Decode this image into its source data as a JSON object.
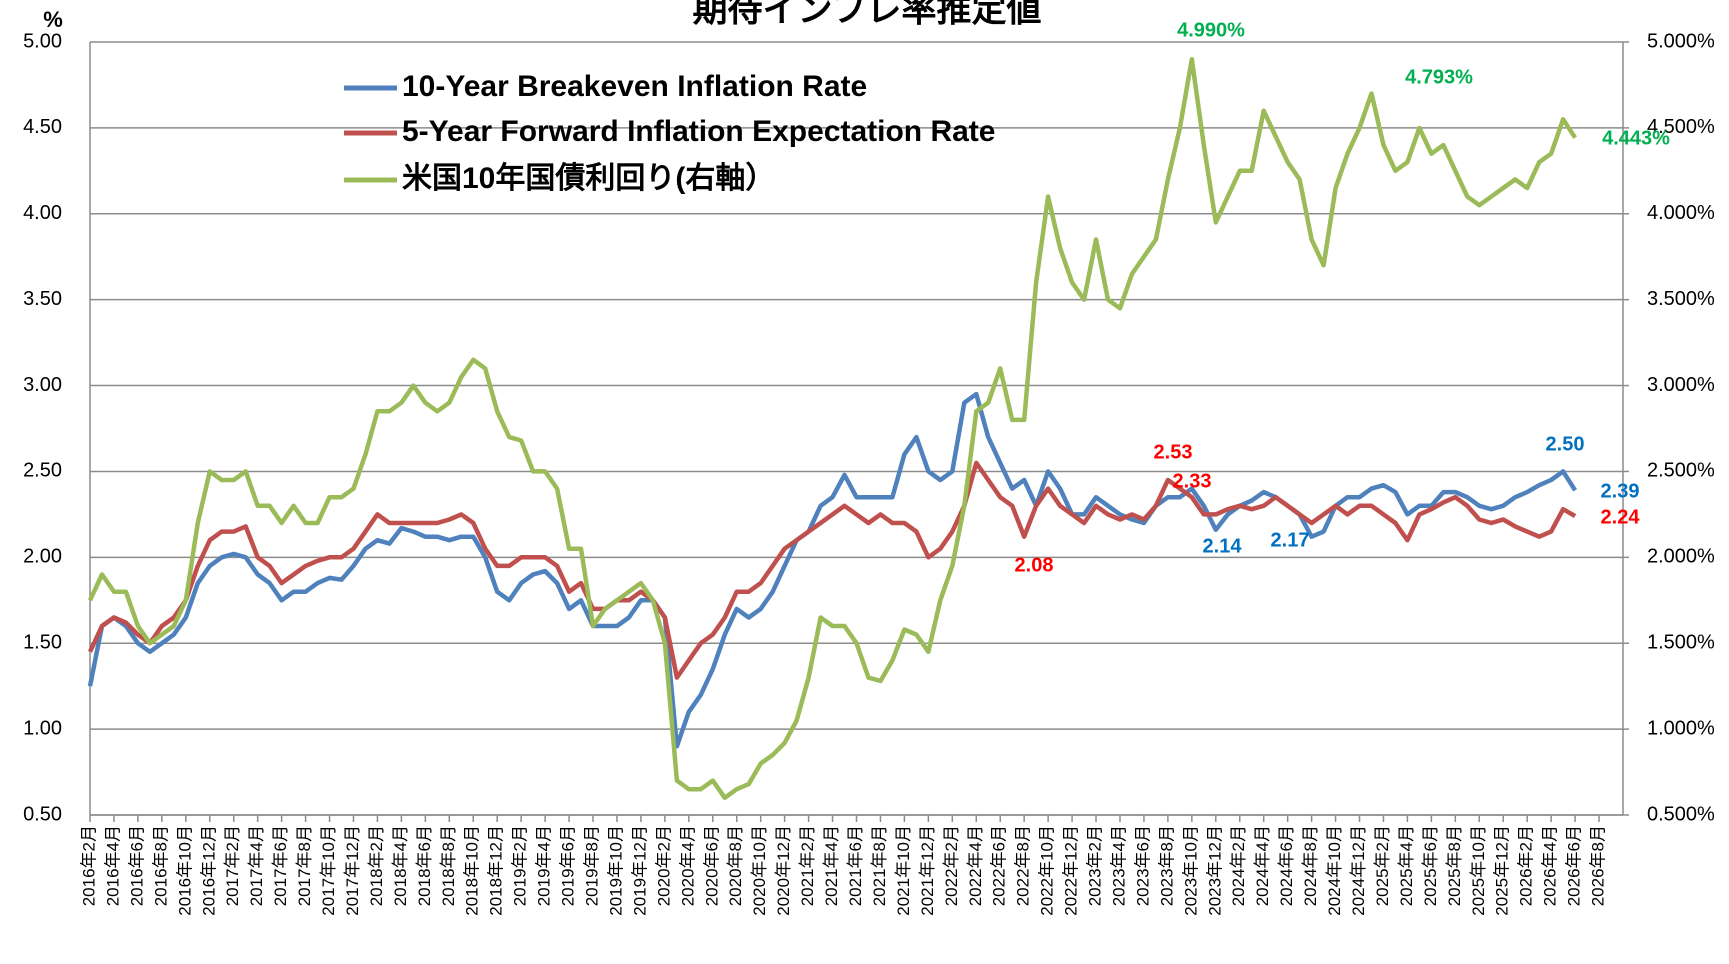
{
  "chart_data": {
    "type": "line",
    "title": "期待インフレ率推定値",
    "y_label": "%",
    "categories": [
      "2016年2月",
      null,
      "2016年4月",
      null,
      "2016年6月",
      null,
      "2016年8月",
      null,
      "2016年10月",
      null,
      "2016年12月",
      null,
      "2017年2月",
      null,
      "2017年4月",
      null,
      "2017年6月",
      null,
      "2017年8月",
      null,
      "2017年10月",
      null,
      "2017年12月",
      null,
      "2018年2月",
      null,
      "2018年4月",
      null,
      "2018年6月",
      null,
      "2018年8月",
      null,
      "2018年10月",
      null,
      "2018年12月",
      null,
      "2019年2月",
      null,
      "2019年4月",
      null,
      "2019年6月",
      null,
      "2019年8月",
      null,
      "2019年10月",
      null,
      "2019年12月",
      null,
      "2020年2月",
      null,
      "2020年4月",
      null,
      "2020年6月",
      null,
      "2020年8月",
      null,
      "2020年10月",
      null,
      "2020年12月",
      null,
      "2021年2月",
      null,
      "2021年4月",
      null,
      "2021年6月",
      null,
      "2021年8月",
      null,
      "2021年10月",
      null,
      "2021年12月",
      null,
      "2022年2月",
      null,
      "2022年4月",
      null,
      "2022年6月",
      null,
      "2022年8月",
      null,
      "2022年10月",
      null,
      "2022年12月",
      null,
      "2023年2月",
      null,
      "2023年4月",
      null,
      "2023年6月",
      null,
      "2023年8月",
      null,
      "2023年10月",
      null,
      "2023年12月",
      null,
      "2024年2月",
      null,
      "2024年4月",
      null,
      "2024年6月",
      null,
      "2024年8月",
      null,
      "2024年10月",
      null,
      "2024年12月",
      null,
      "2025年2月",
      null,
      "2025年4月",
      null,
      "2025年6月",
      null,
      "2025年8月",
      null,
      "2025年10月",
      null,
      "2025年12月",
      null,
      "2026年2月",
      null,
      "2026年4月",
      null,
      "2026年6月",
      null,
      "2026年8月",
      null,
      null
    ],
    "series": [
      {
        "name": "10-Year Breakeven Inflation Rate",
        "color": "#4f81bd",
        "values": [
          1.25,
          1.6,
          1.65,
          1.6,
          1.5,
          1.45,
          1.5,
          1.55,
          1.65,
          1.85,
          1.95,
          2.0,
          2.02,
          2.0,
          1.9,
          1.85,
          1.75,
          1.8,
          1.8,
          1.85,
          1.88,
          1.87,
          1.95,
          2.05,
          2.1,
          2.08,
          2.17,
          2.15,
          2.12,
          2.12,
          2.1,
          2.12,
          2.12,
          2.0,
          1.8,
          1.75,
          1.85,
          1.9,
          1.92,
          1.85,
          1.7,
          1.75,
          1.6,
          1.6,
          1.6,
          1.65,
          1.75,
          1.75,
          1.65,
          0.9,
          1.1,
          1.2,
          1.35,
          1.55,
          1.7,
          1.65,
          1.7,
          1.8,
          1.95,
          2.1,
          2.15,
          2.3,
          2.35,
          2.48,
          2.35,
          2.35,
          2.35,
          2.35,
          2.6,
          2.7,
          2.5,
          2.45,
          2.5,
          2.9,
          2.95,
          2.7,
          2.55,
          2.4,
          2.45,
          2.3,
          2.5,
          2.4,
          2.25,
          2.25,
          2.35,
          2.3,
          2.25,
          2.22,
          2.2,
          2.3,
          2.35,
          2.35,
          2.4,
          2.3,
          2.16,
          2.25,
          2.3,
          2.33,
          2.38,
          2.35,
          2.3,
          2.25,
          2.12,
          2.15,
          2.3,
          2.35,
          2.35,
          2.4,
          2.42,
          2.38,
          2.25,
          2.3,
          2.3,
          2.38,
          2.38,
          2.35,
          2.3,
          2.28,
          2.3,
          2.35,
          2.38,
          2.42,
          2.45,
          2.5,
          2.39,
          null,
          null,
          null,
          null
        ]
      },
      {
        "name": "5-Year Forward Inflation Expectation Rate",
        "color": "#c0504d",
        "values": [
          1.45,
          1.6,
          1.65,
          1.62,
          1.55,
          1.5,
          1.6,
          1.65,
          1.75,
          1.95,
          2.1,
          2.15,
          2.15,
          2.18,
          2.0,
          1.95,
          1.85,
          1.9,
          1.95,
          1.98,
          2.0,
          2.0,
          2.05,
          2.15,
          2.25,
          2.2,
          2.2,
          2.2,
          2.2,
          2.2,
          2.22,
          2.25,
          2.2,
          2.05,
          1.95,
          1.95,
          2.0,
          2.0,
          2.0,
          1.95,
          1.8,
          1.85,
          1.7,
          1.7,
          1.75,
          1.75,
          1.8,
          1.75,
          1.65,
          1.3,
          1.4,
          1.5,
          1.55,
          1.65,
          1.8,
          1.8,
          1.85,
          1.95,
          2.05,
          2.1,
          2.15,
          2.2,
          2.25,
          2.3,
          2.25,
          2.2,
          2.25,
          2.2,
          2.2,
          2.15,
          2.0,
          2.05,
          2.15,
          2.3,
          2.55,
          2.45,
          2.35,
          2.3,
          2.12,
          2.3,
          2.4,
          2.3,
          2.25,
          2.2,
          2.3,
          2.25,
          2.22,
          2.25,
          2.22,
          2.3,
          2.45,
          2.4,
          2.35,
          2.25,
          2.25,
          2.28,
          2.3,
          2.28,
          2.3,
          2.35,
          2.3,
          2.25,
          2.2,
          2.25,
          2.3,
          2.25,
          2.3,
          2.3,
          2.25,
          2.2,
          2.1,
          2.25,
          2.28,
          2.32,
          2.35,
          2.3,
          2.22,
          2.2,
          2.22,
          2.18,
          2.15,
          2.12,
          2.15,
          2.28,
          2.24,
          null,
          null,
          null,
          null
        ]
      },
      {
        "name": "米国10年国債利回り(右軸）",
        "color": "#9bbb59",
        "axis": "y2",
        "values": [
          1.75,
          1.9,
          1.8,
          1.8,
          1.6,
          1.5,
          1.55,
          1.6,
          1.75,
          2.2,
          2.5,
          2.45,
          2.45,
          2.5,
          2.3,
          2.3,
          2.2,
          2.3,
          2.2,
          2.2,
          2.35,
          2.35,
          2.4,
          2.6,
          2.85,
          2.85,
          2.9,
          3.0,
          2.9,
          2.85,
          2.9,
          3.05,
          3.15,
          3.1,
          2.85,
          2.7,
          2.68,
          2.5,
          2.5,
          2.4,
          2.05,
          2.05,
          1.6,
          1.7,
          1.75,
          1.8,
          1.85,
          1.75,
          1.5,
          0.7,
          0.65,
          0.65,
          0.7,
          0.6,
          0.65,
          0.68,
          0.8,
          0.85,
          0.92,
          1.05,
          1.3,
          1.65,
          1.6,
          1.6,
          1.5,
          1.3,
          1.28,
          1.4,
          1.58,
          1.55,
          1.45,
          1.75,
          1.95,
          2.3,
          2.85,
          2.9,
          3.1,
          2.8,
          2.8,
          3.6,
          4.1,
          3.8,
          3.6,
          3.5,
          3.85,
          3.5,
          3.45,
          3.65,
          3.75,
          3.85,
          4.2,
          4.5,
          4.9,
          4.4,
          3.95,
          4.1,
          4.25,
          4.25,
          4.6,
          4.45,
          4.3,
          4.2,
          3.85,
          3.7,
          4.15,
          4.35,
          4.5,
          4.7,
          4.4,
          4.25,
          4.3,
          4.5,
          4.35,
          4.4,
          4.25,
          4.1,
          4.05,
          4.1,
          4.15,
          4.2,
          4.15,
          4.3,
          4.35,
          4.55,
          4.443,
          null,
          null,
          null,
          null
        ]
      }
    ],
    "ylim": [
      0.5,
      5
    ],
    "yticks": [
      {
        "value": 0.5,
        "label": "0.50"
      },
      {
        "value": 1,
        "label": "1.00"
      },
      {
        "value": 1.5,
        "label": "1.50"
      },
      {
        "value": 2,
        "label": "2.00"
      },
      {
        "value": 2.5,
        "label": "2.50"
      },
      {
        "value": 3,
        "label": "3.00"
      },
      {
        "value": 3.5,
        "label": "3.50"
      },
      {
        "value": 4,
        "label": "4.00"
      },
      {
        "value": 4.5,
        "label": "4.50"
      },
      {
        "value": 5,
        "label": "5.00"
      }
    ],
    "y2lim": [
      0.5,
      5
    ],
    "y2ticks": [
      {
        "value": 0.5,
        "label": "0.500%"
      },
      {
        "value": 1,
        "label": "1.000%"
      },
      {
        "value": 1.5,
        "label": "1.500%"
      },
      {
        "value": 2,
        "label": "2.000%"
      },
      {
        "value": 2.5,
        "label": "2.500%"
      },
      {
        "value": 3,
        "label": "3.000%"
      },
      {
        "value": 3.5,
        "label": "3.500%"
      },
      {
        "value": 4,
        "label": "4.000%"
      },
      {
        "value": 4.5,
        "label": "4.500%"
      },
      {
        "value": 5,
        "label": "5.000%"
      }
    ],
    "grid": true,
    "legend": "top-left",
    "annotations": [
      {
        "text": "4.990%",
        "color": "#00b050"
      },
      {
        "text": "4.793%",
        "color": "#00b050"
      },
      {
        "text": "4.443%",
        "color": "#00b050"
      },
      {
        "text": "2.53",
        "color": "#ff0000"
      },
      {
        "text": "2.33",
        "color": "#ff0000"
      },
      {
        "text": "2.08",
        "color": "#ff0000"
      },
      {
        "text": "2.14",
        "color": "#0070c0"
      },
      {
        "text": "2.17",
        "color": "#0070c0"
      },
      {
        "text": "2.50",
        "color": "#0070c0"
      },
      {
        "text": "2.39",
        "color": "#0070c0"
      },
      {
        "text": "2.24",
        "color": "#ff0000"
      }
    ]
  }
}
